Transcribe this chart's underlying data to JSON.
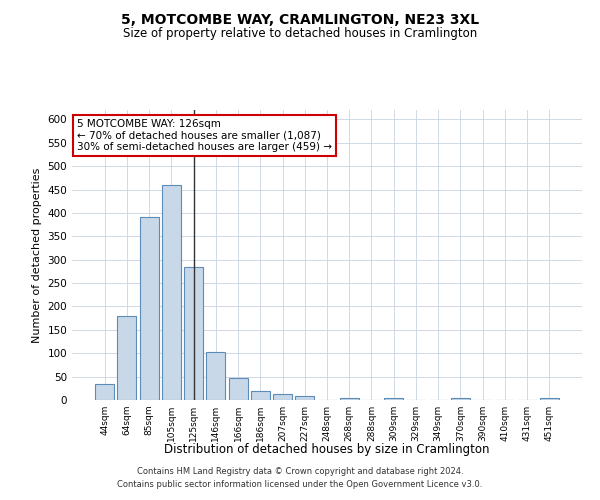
{
  "title": "5, MOTCOMBE WAY, CRAMLINGTON, NE23 3XL",
  "subtitle": "Size of property relative to detached houses in Cramlington",
  "xlabel": "Distribution of detached houses by size in Cramlington",
  "ylabel": "Number of detached properties",
  "footer_line1": "Contains HM Land Registry data © Crown copyright and database right 2024.",
  "footer_line2": "Contains public sector information licensed under the Open Government Licence v3.0.",
  "categories": [
    "44sqm",
    "64sqm",
    "85sqm",
    "105sqm",
    "125sqm",
    "146sqm",
    "166sqm",
    "186sqm",
    "207sqm",
    "227sqm",
    "248sqm",
    "268sqm",
    "288sqm",
    "309sqm",
    "329sqm",
    "349sqm",
    "370sqm",
    "390sqm",
    "410sqm",
    "431sqm",
    "451sqm"
  ],
  "values": [
    35,
    180,
    392,
    460,
    285,
    102,
    48,
    20,
    13,
    8,
    0,
    4,
    0,
    4,
    0,
    0,
    4,
    0,
    0,
    0,
    4
  ],
  "bar_color": "#c8d8e8",
  "bar_edge_color": "#5b8db8",
  "highlight_index": 4,
  "highlight_line_color": "#333333",
  "annotation_line1": "5 MOTCOMBE WAY: 126sqm",
  "annotation_line2": "← 70% of detached houses are smaller (1,087)",
  "annotation_line3": "30% of semi-detached houses are larger (459) →",
  "annotation_box_color": "#ffffff",
  "annotation_box_edge_color": "#cc0000",
  "ylim": [
    0,
    620
  ],
  "yticks": [
    0,
    50,
    100,
    150,
    200,
    250,
    300,
    350,
    400,
    450,
    500,
    550,
    600
  ],
  "background_color": "#ffffff",
  "grid_color": "#c8d4e0"
}
